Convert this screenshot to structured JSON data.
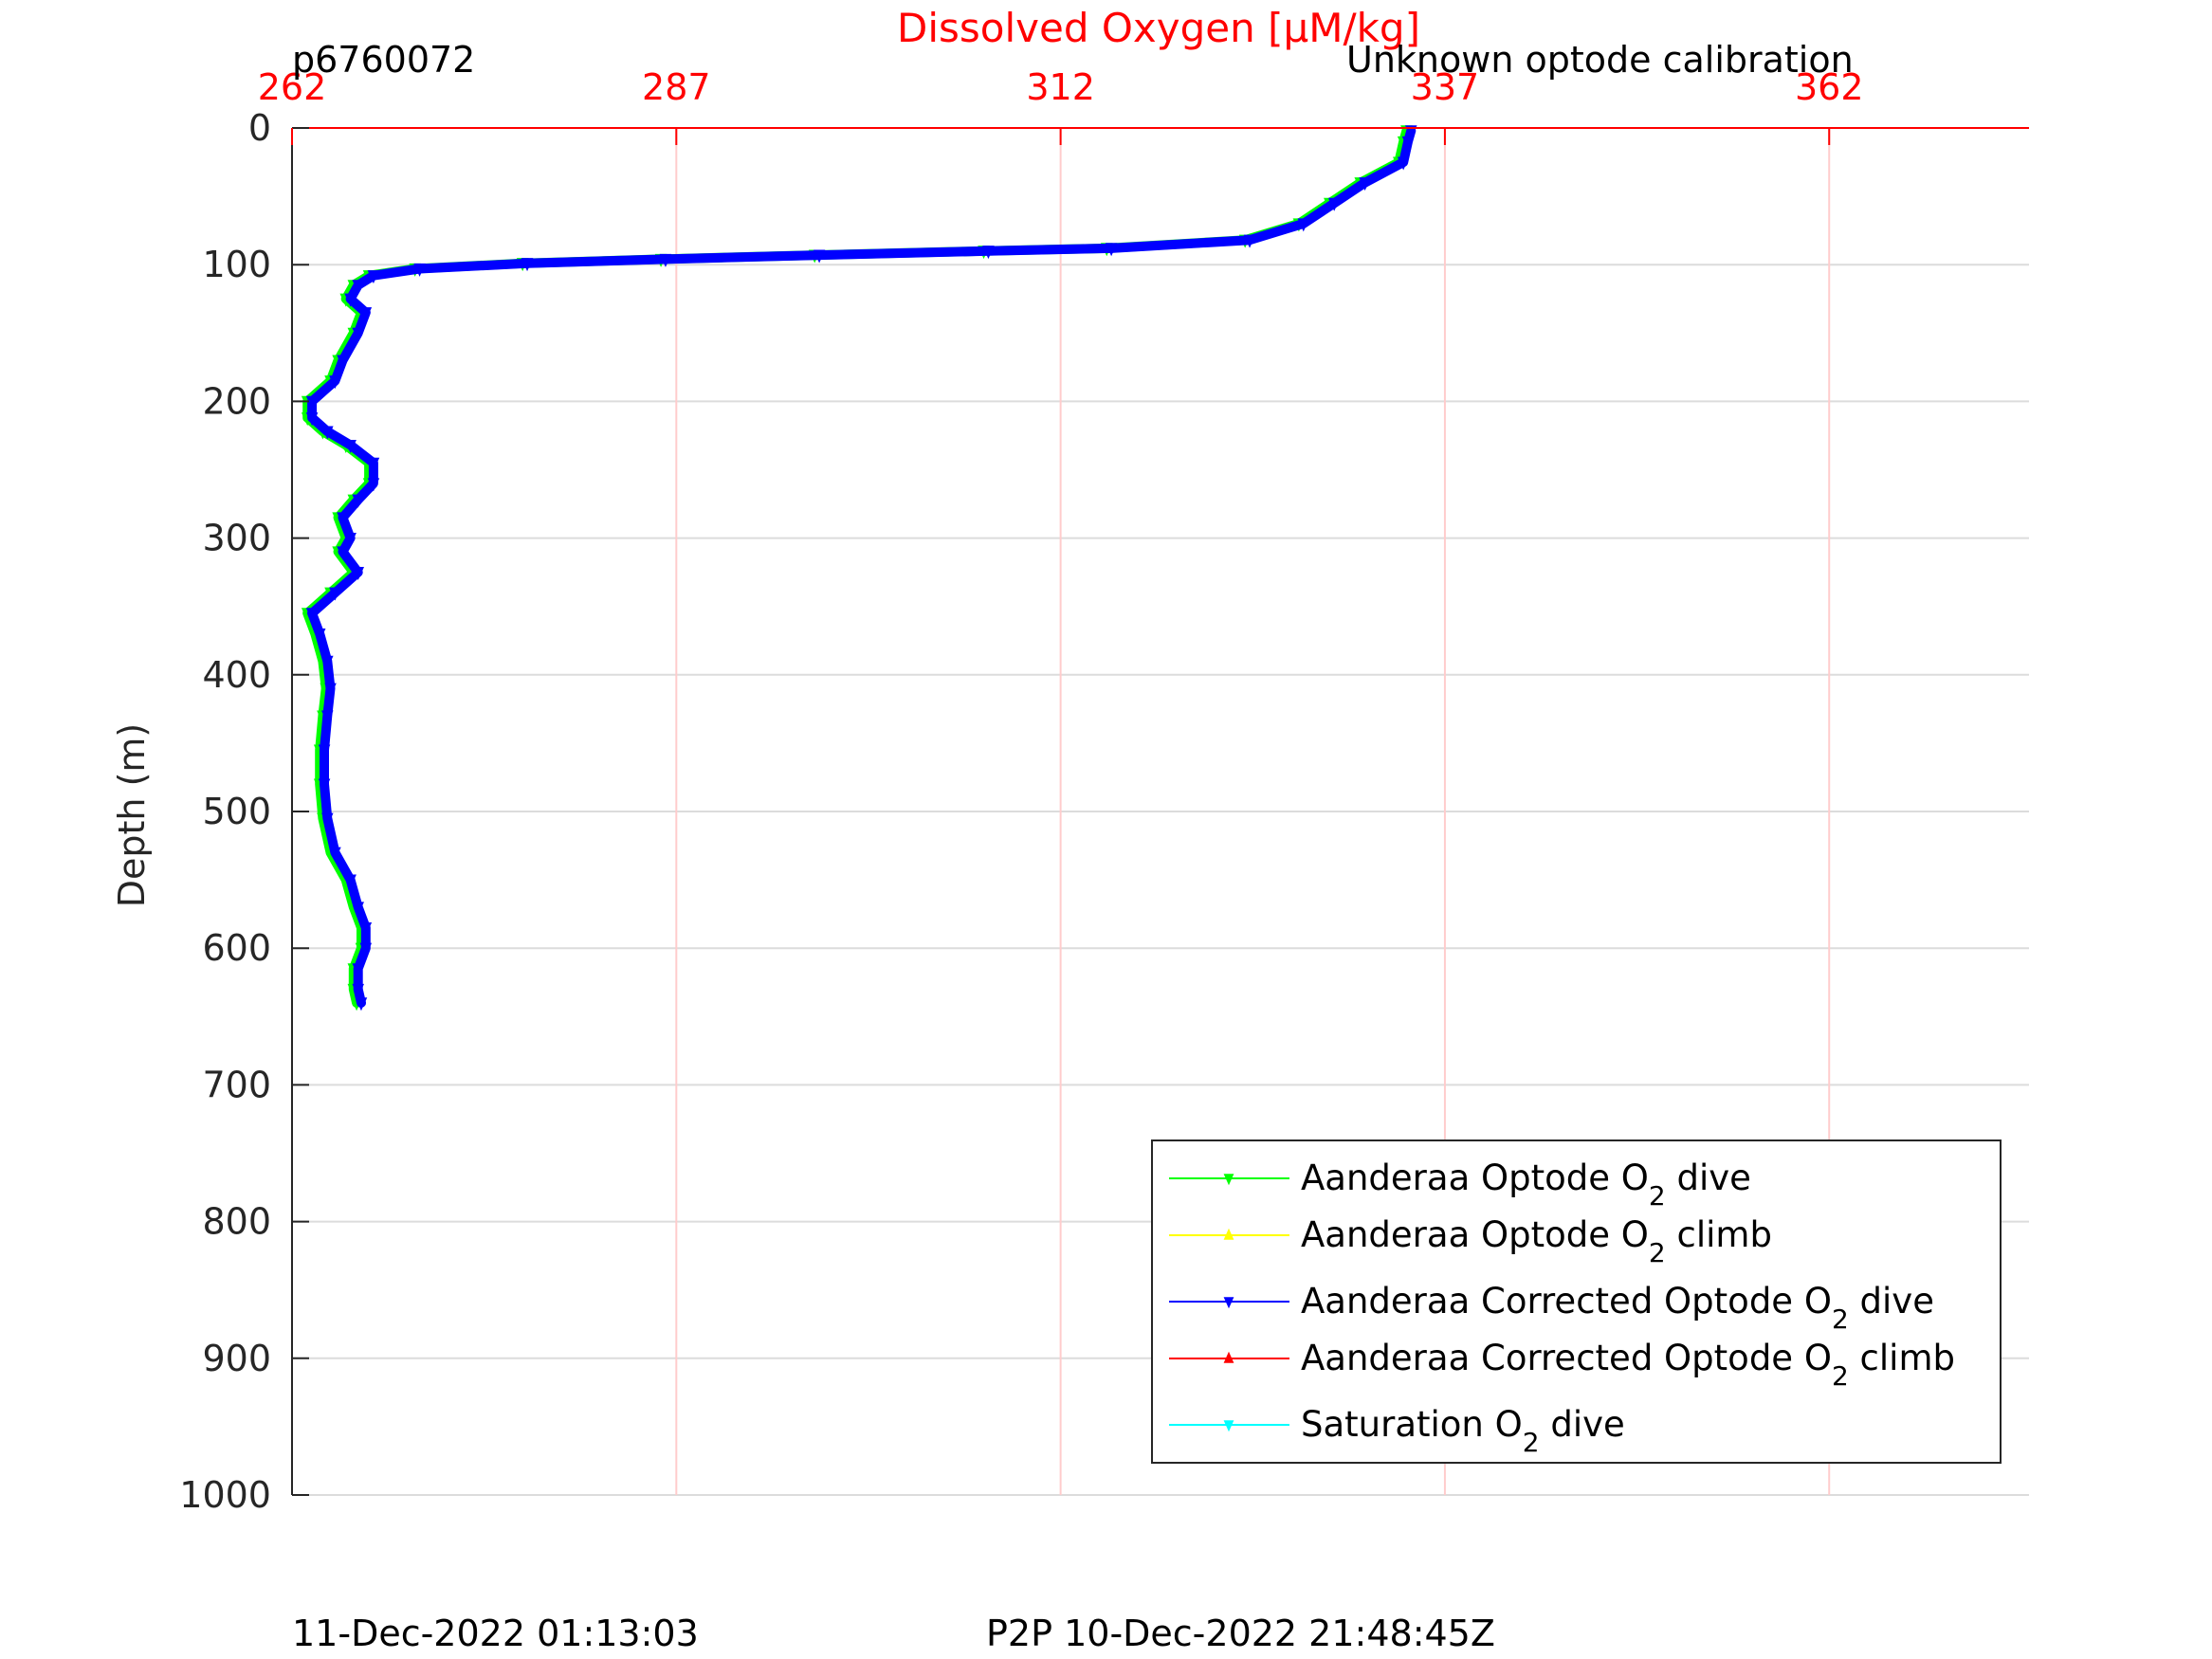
{
  "chart_data": {
    "type": "line",
    "title": "Dissolved Oxygen [μM/kg]",
    "title_color": "#ff0000",
    "top_left_label": "p6760072",
    "top_right_label": "Unknown optode calibration",
    "ylabel": "Depth (m)",
    "xlim": [
      262,
      375
    ],
    "ylim": [
      0,
      1000
    ],
    "y_reversed": true,
    "x_ticks": [
      262,
      287,
      312,
      337,
      362
    ],
    "x_tick_labels": [
      "262",
      "287",
      "312",
      "337",
      "362"
    ],
    "y_ticks": [
      0,
      100,
      200,
      300,
      400,
      500,
      600,
      700,
      800,
      900,
      1000
    ],
    "y_tick_labels": [
      "0",
      "100",
      "200",
      "300",
      "400",
      "500",
      "600",
      "700",
      "800",
      "900",
      "1000"
    ],
    "x_axis_position": "top",
    "x_axis_color": "#ff0000",
    "grid": true,
    "legend_position": "bottom-right",
    "series": [
      {
        "name": "Aanderaa Optode O2 dive",
        "legend_main": "Aanderaa Optode O",
        "legend_sub": "2",
        "legend_tail": " dive",
        "color": "#00ff00",
        "marker": "triangle-down",
        "points": [
          [
            334.5,
            2
          ],
          [
            334.3,
            10
          ],
          [
            334.0,
            25
          ],
          [
            331.5,
            40
          ],
          [
            329.5,
            55
          ],
          [
            327.5,
            70
          ],
          [
            324.0,
            82
          ],
          [
            315.0,
            88
          ],
          [
            307.0,
            90
          ],
          [
            296.0,
            93
          ],
          [
            286.0,
            96
          ],
          [
            277.0,
            99
          ],
          [
            270.0,
            103
          ],
          [
            267.0,
            108
          ],
          [
            266.0,
            115
          ],
          [
            265.5,
            125
          ],
          [
            266.5,
            135
          ],
          [
            266.0,
            150
          ],
          [
            265.0,
            170
          ],
          [
            264.5,
            185
          ],
          [
            263.0,
            200
          ],
          [
            263.0,
            212
          ],
          [
            264.0,
            222
          ],
          [
            265.5,
            232
          ],
          [
            267.0,
            245
          ],
          [
            267.0,
            260
          ],
          [
            266.0,
            272
          ],
          [
            265.0,
            285
          ],
          [
            265.5,
            300
          ],
          [
            265.0,
            310
          ],
          [
            266.0,
            325
          ],
          [
            264.5,
            340
          ],
          [
            263.0,
            355
          ],
          [
            263.5,
            370
          ],
          [
            264.0,
            390
          ],
          [
            264.2,
            410
          ],
          [
            264.0,
            430
          ],
          [
            263.8,
            455
          ],
          [
            263.8,
            480
          ],
          [
            264.0,
            505
          ],
          [
            264.5,
            530
          ],
          [
            265.5,
            550
          ],
          [
            266.0,
            570
          ],
          [
            266.5,
            585
          ],
          [
            266.5,
            600
          ],
          [
            266.0,
            615
          ],
          [
            266.0,
            630
          ],
          [
            266.2,
            640
          ]
        ]
      },
      {
        "name": "Aanderaa Optode O2 climb",
        "legend_main": "Aanderaa Optode O",
        "legend_sub": "2",
        "legend_tail": " climb",
        "color": "#ffff00",
        "marker": "triangle-up",
        "points": []
      },
      {
        "name": "Aanderaa Corrected Optode O2 dive",
        "legend_main": "Aanderaa Corrected Optode O",
        "legend_sub": "2",
        "legend_tail": " dive",
        "color": "#0000ff",
        "marker": "triangle-down",
        "points": [
          [
            334.8,
            2
          ],
          [
            334.6,
            10
          ],
          [
            334.3,
            25
          ],
          [
            331.8,
            40
          ],
          [
            329.8,
            55
          ],
          [
            327.8,
            70
          ],
          [
            324.3,
            82
          ],
          [
            315.3,
            88
          ],
          [
            307.3,
            90
          ],
          [
            296.3,
            93
          ],
          [
            286.3,
            96
          ],
          [
            277.3,
            99
          ],
          [
            270.3,
            103
          ],
          [
            267.3,
            108
          ],
          [
            266.3,
            115
          ],
          [
            265.8,
            125
          ],
          [
            266.8,
            135
          ],
          [
            266.3,
            150
          ],
          [
            265.3,
            170
          ],
          [
            264.8,
            185
          ],
          [
            263.3,
            200
          ],
          [
            263.3,
            212
          ],
          [
            264.3,
            222
          ],
          [
            265.8,
            232
          ],
          [
            267.3,
            245
          ],
          [
            267.3,
            260
          ],
          [
            266.3,
            272
          ],
          [
            265.3,
            285
          ],
          [
            265.8,
            300
          ],
          [
            265.3,
            310
          ],
          [
            266.3,
            325
          ],
          [
            264.8,
            340
          ],
          [
            263.3,
            355
          ],
          [
            263.8,
            370
          ],
          [
            264.3,
            390
          ],
          [
            264.5,
            410
          ],
          [
            264.3,
            430
          ],
          [
            264.1,
            455
          ],
          [
            264.1,
            480
          ],
          [
            264.3,
            505
          ],
          [
            264.8,
            530
          ],
          [
            265.8,
            550
          ],
          [
            266.3,
            570
          ],
          [
            266.8,
            585
          ],
          [
            266.8,
            600
          ],
          [
            266.3,
            615
          ],
          [
            266.3,
            630
          ],
          [
            266.5,
            640
          ]
        ]
      },
      {
        "name": "Aanderaa Corrected Optode O2 climb",
        "legend_main": "Aanderaa Corrected Optode O",
        "legend_sub": "2",
        "legend_tail": " climb",
        "color": "#ff0000",
        "marker": "triangle-up",
        "points": []
      },
      {
        "name": "Saturation O2 dive",
        "legend_main": "Saturation O",
        "legend_sub": "2",
        "legend_tail": " dive",
        "color": "#00ffff",
        "marker": "triangle-down",
        "points": []
      }
    ]
  },
  "footer": {
    "left": "11-Dec-2022 01:13:03",
    "right": "P2P 10-Dec-2022 21:48:45Z"
  }
}
